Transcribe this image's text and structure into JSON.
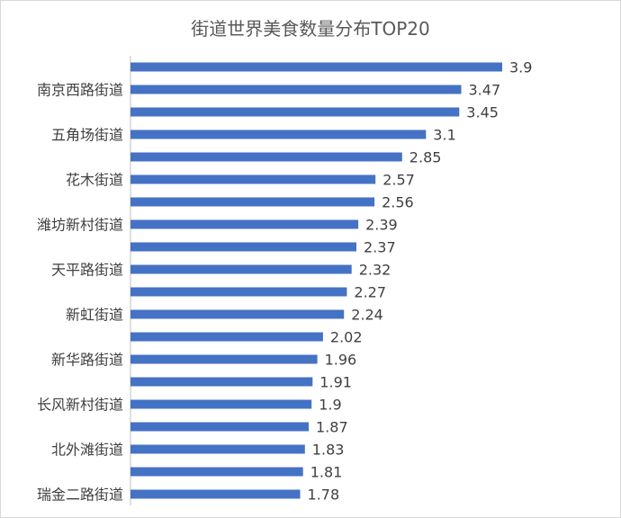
{
  "chart_data": {
    "type": "bar",
    "orientation": "horizontal",
    "title": "街道世界美食数量分布TOP20",
    "color": "#4472c4",
    "categories": [
      "",
      "南京西路街道",
      "",
      "五角场街道",
      "",
      "花木街道",
      "",
      "潍坊新村街道",
      "",
      "天平路街道",
      "",
      "新虹街道",
      "",
      "新华路街道",
      "",
      "长风新村街道",
      "",
      "北外滩街道",
      "",
      "瑞金二路街道"
    ],
    "values": [
      3.9,
      3.47,
      3.45,
      3.1,
      2.85,
      2.57,
      2.56,
      2.39,
      2.37,
      2.32,
      2.27,
      2.24,
      2.02,
      1.96,
      1.91,
      1.9,
      1.87,
      1.83,
      1.81,
      1.78
    ],
    "value_labels": [
      "3.9",
      "3.47",
      "3.45",
      "3.1",
      "2.85",
      "2.57",
      "2.56",
      "2.39",
      "2.37",
      "2.32",
      "2.27",
      "2.24",
      "2.02",
      "1.96",
      "1.91",
      "1.9",
      "1.87",
      "1.83",
      "1.81",
      "1.78"
    ],
    "xlim": [
      0,
      4
    ],
    "grid": false,
    "legend": "none"
  }
}
